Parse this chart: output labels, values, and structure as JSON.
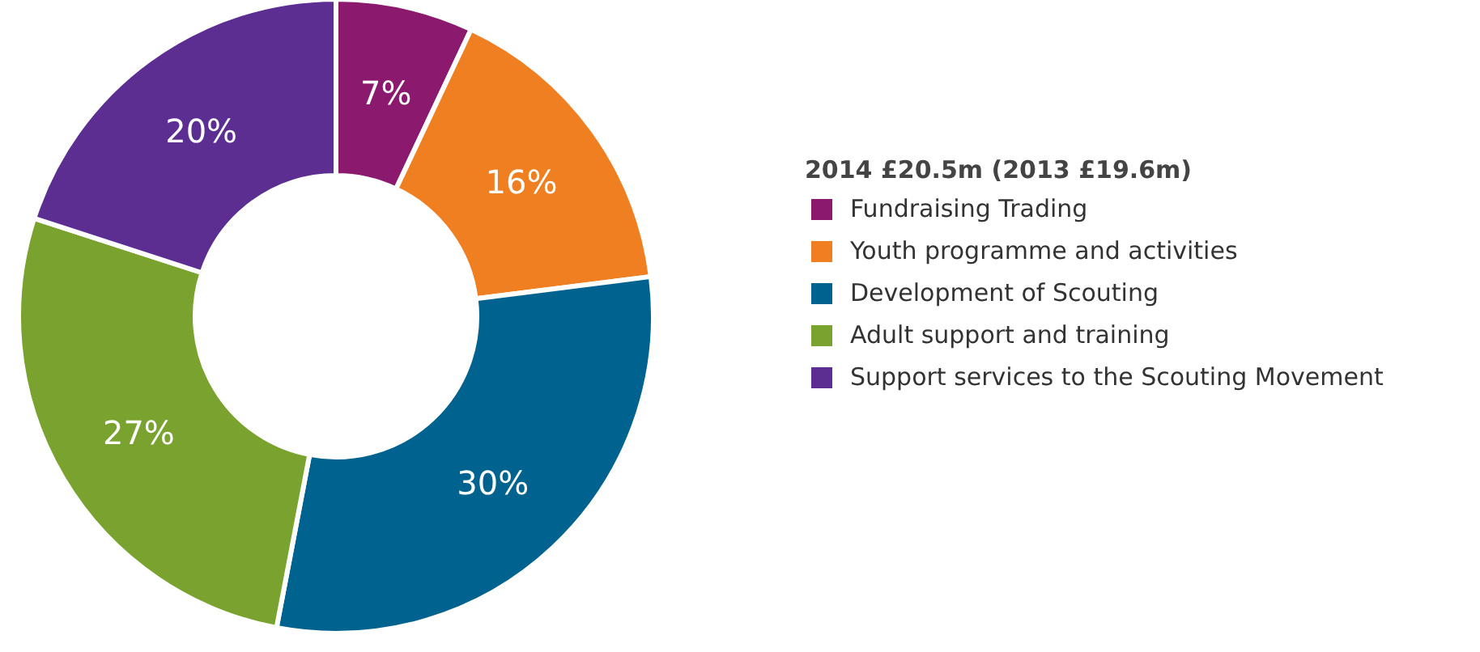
{
  "chart_data": {
    "type": "donut",
    "legend_title": "2014 £20.5m (2013 £19.6m)",
    "categories": [
      "Fundraising Trading",
      "Youth programme and activities",
      "Development of Scouting",
      "Adult support and training",
      "Support services to the Scouting Movement"
    ],
    "values": [
      7,
      16,
      30,
      27,
      20
    ],
    "colors": [
      "#8b1a6e",
      "#f07f22",
      "#00628f",
      "#7aa22f",
      "#5c2e91"
    ],
    "value_labels": [
      "7%",
      "16%",
      "30%",
      "27%",
      "20%"
    ],
    "legend": "right"
  }
}
